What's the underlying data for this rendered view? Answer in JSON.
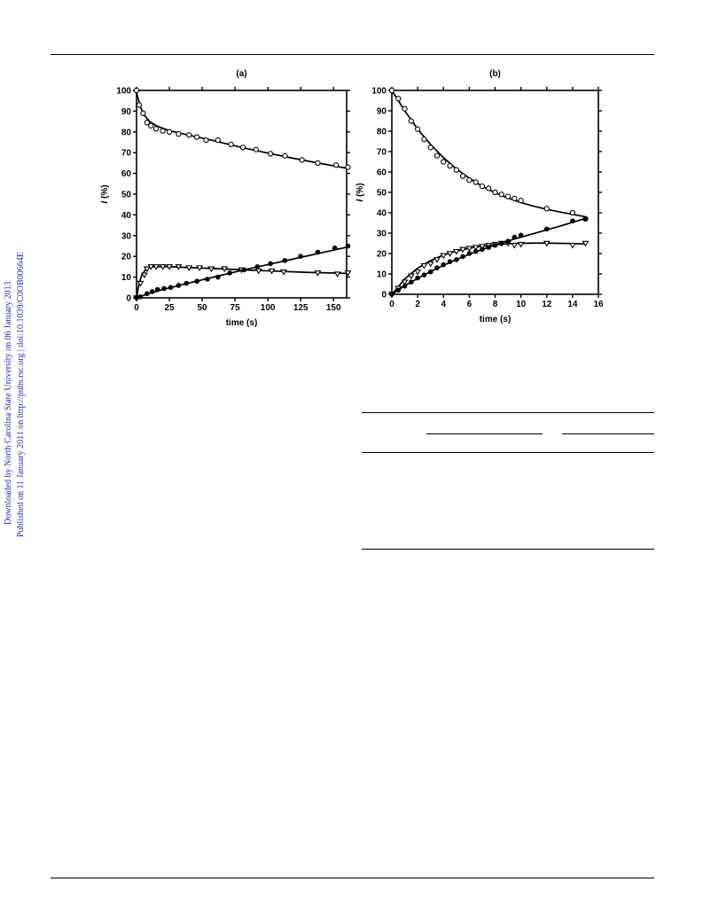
{
  "sidebar": {
    "line1": "Downloaded by North Carolina State University on 06 January 2013",
    "line2": "Published on 11 January 2011 on http://pubs.rsc.org | doi:10.1039/C0OB00664E"
  },
  "chart_data": [
    {
      "type": "scatter",
      "panel_label": "(a)",
      "xlabel": "time (s)",
      "ylabel_italic": "I",
      "ylabel_rest": " (%)",
      "xlim": [
        0,
        160
      ],
      "ylim": [
        0,
        100
      ],
      "xticks": [
        0,
        25,
        50,
        75,
        100,
        125,
        150
      ],
      "yticks": [
        0,
        10,
        20,
        30,
        40,
        50,
        60,
        70,
        80,
        90,
        100
      ],
      "series": [
        {
          "marker": "open-circle",
          "points": [
            [
              0,
              100
            ],
            [
              2,
              93
            ],
            [
              5,
              89
            ],
            [
              8,
              84.5
            ],
            [
              11,
              83
            ],
            [
              15,
              81.5
            ],
            [
              20,
              80.5
            ],
            [
              25,
              80
            ],
            [
              32,
              79
            ],
            [
              40,
              78.5
            ],
            [
              46,
              77.5
            ],
            [
              53,
              76
            ],
            [
              62,
              76
            ],
            [
              72,
              74
            ],
            [
              81,
              72.5
            ],
            [
              91,
              71.5
            ],
            [
              102,
              69.5
            ],
            [
              113,
              68.5
            ],
            [
              126,
              66.5
            ],
            [
              138,
              65
            ],
            [
              152,
              64
            ],
            [
              161,
              63
            ]
          ],
          "fit": [
            [
              0,
              99
            ],
            [
              3,
              92
            ],
            [
              6,
              88
            ],
            [
              10,
              85
            ],
            [
              15,
              83
            ],
            [
              25,
              80.6
            ],
            [
              40,
              78.4
            ],
            [
              60,
              75.6
            ],
            [
              80,
              72.5
            ],
            [
              100,
              69.8
            ],
            [
              120,
              67.2
            ],
            [
              140,
              64.8
            ],
            [
              160,
              62.5
            ]
          ]
        },
        {
          "marker": "open-triangle-down",
          "points": [
            [
              0,
              0
            ],
            [
              3,
              7
            ],
            [
              6,
              11
            ],
            [
              8,
              14
            ],
            [
              11,
              15
            ],
            [
              15,
              15
            ],
            [
              20,
              15
            ],
            [
              25,
              15
            ],
            [
              32,
              15
            ],
            [
              40,
              14.5
            ],
            [
              48,
              14.5
            ],
            [
              57,
              14
            ],
            [
              67,
              14
            ],
            [
              80,
              13.5
            ],
            [
              93,
              13
            ],
            [
              103,
              13
            ],
            [
              112,
              12.5
            ],
            [
              138,
              12
            ],
            [
              153,
              11.5
            ],
            [
              161,
              12
            ]
          ],
          "fit": [
            [
              0,
              0
            ],
            [
              2,
              7
            ],
            [
              4,
              11
            ],
            [
              7,
              13.7
            ],
            [
              10,
              14.8
            ],
            [
              15,
              15.1
            ],
            [
              25,
              15
            ],
            [
              40,
              14.6
            ],
            [
              60,
              14.1
            ],
            [
              80,
              13.5
            ],
            [
              100,
              13
            ],
            [
              130,
              12.3
            ],
            [
              160,
              11.8
            ]
          ]
        },
        {
          "marker": "filled-circle",
          "points": [
            [
              0,
              0
            ],
            [
              3,
              0.5
            ],
            [
              8,
              2
            ],
            [
              12,
              3
            ],
            [
              16,
              4
            ],
            [
              21,
              4.5
            ],
            [
              26,
              5
            ],
            [
              32,
              6
            ],
            [
              38,
              7
            ],
            [
              46,
              8
            ],
            [
              54,
              9
            ],
            [
              62,
              10
            ],
            [
              71,
              12
            ],
            [
              82,
              13.5
            ],
            [
              92,
              15
            ],
            [
              102,
              16.5
            ],
            [
              113,
              18
            ],
            [
              125,
              20
            ],
            [
              138,
              22
            ],
            [
              151,
              24
            ],
            [
              161,
              25
            ]
          ],
          "fit": [
            [
              0,
              0
            ],
            [
              10,
              2.2
            ],
            [
              20,
              4
            ],
            [
              40,
              7.2
            ],
            [
              60,
              10.2
            ],
            [
              80,
              13.2
            ],
            [
              100,
              16
            ],
            [
              120,
              18.8
            ],
            [
              140,
              21.6
            ],
            [
              160,
              24.4
            ]
          ]
        }
      ]
    },
    {
      "type": "scatter",
      "panel_label": "(b)",
      "xlabel": "time (s)",
      "ylabel_italic": "I",
      "ylabel_rest": " (%)",
      "xlim": [
        0,
        16
      ],
      "ylim": [
        0,
        100
      ],
      "xticks": [
        0,
        2,
        4,
        6,
        8,
        10,
        12,
        14,
        16
      ],
      "yticks": [
        0,
        10,
        20,
        30,
        40,
        50,
        60,
        70,
        80,
        90,
        100
      ],
      "series": [
        {
          "marker": "open-circle",
          "points": [
            [
              0,
              100
            ],
            [
              0.5,
              96
            ],
            [
              1,
              91
            ],
            [
              1.5,
              85
            ],
            [
              2,
              81
            ],
            [
              2.5,
              76
            ],
            [
              3,
              72
            ],
            [
              3.5,
              68
            ],
            [
              4,
              65
            ],
            [
              4.5,
              63
            ],
            [
              5,
              61
            ],
            [
              5.5,
              58
            ],
            [
              6,
              56
            ],
            [
              6.5,
              55
            ],
            [
              7,
              53
            ],
            [
              7.5,
              52
            ],
            [
              8,
              50
            ],
            [
              8.5,
              49
            ],
            [
              9,
              48
            ],
            [
              9.5,
              47
            ],
            [
              10,
              46
            ],
            [
              12,
              42
            ],
            [
              14,
              40
            ],
            [
              15,
              37
            ]
          ],
          "fit": [
            [
              0,
              100
            ],
            [
              1,
              90
            ],
            [
              2,
              81
            ],
            [
              3,
              73.5
            ],
            [
              4,
              67
            ],
            [
              5,
              61.5
            ],
            [
              6,
              57
            ],
            [
              7,
              53
            ],
            [
              8,
              49.8
            ],
            [
              9,
              47.2
            ],
            [
              10,
              45
            ],
            [
              11,
              43.2
            ],
            [
              12,
              41.7
            ],
            [
              13,
              40.4
            ],
            [
              14,
              39.2
            ],
            [
              15,
              38
            ]
          ]
        },
        {
          "marker": "open-triangle-down",
          "points": [
            [
              0,
              0
            ],
            [
              0.5,
              3
            ],
            [
              1,
              6
            ],
            [
              1.5,
              9
            ],
            [
              2,
              11
            ],
            [
              2.5,
              14
            ],
            [
              3,
              15
            ],
            [
              3.5,
              17
            ],
            [
              4,
              19
            ],
            [
              4.5,
              20
            ],
            [
              5,
              21
            ],
            [
              5.5,
              22
            ],
            [
              6,
              22.5
            ],
            [
              6.5,
              23
            ],
            [
              7,
              23.5
            ],
            [
              7.5,
              24
            ],
            [
              8,
              24.5
            ],
            [
              8.5,
              25
            ],
            [
              9,
              25
            ],
            [
              9.5,
              24
            ],
            [
              10,
              24.5
            ],
            [
              12,
              25
            ],
            [
              14,
              24
            ],
            [
              15,
              25
            ]
          ],
          "fit": [
            [
              0,
              0
            ],
            [
              1,
              7.5
            ],
            [
              2,
              12.8
            ],
            [
              3,
              16.5
            ],
            [
              4,
              19.3
            ],
            [
              5,
              21.2
            ],
            [
              6,
              22.6
            ],
            [
              7,
              23.6
            ],
            [
              8,
              24.3
            ],
            [
              9,
              24.8
            ],
            [
              10,
              25
            ],
            [
              11,
              25.1
            ],
            [
              12,
              25.1
            ],
            [
              13,
              25
            ],
            [
              14,
              24.9
            ],
            [
              15,
              24.7
            ]
          ]
        },
        {
          "marker": "filled-circle",
          "points": [
            [
              0,
              0
            ],
            [
              0.5,
              2
            ],
            [
              1,
              4
            ],
            [
              1.5,
              6
            ],
            [
              2,
              8
            ],
            [
              2.5,
              9.5
            ],
            [
              3,
              11
            ],
            [
              3.5,
              13
            ],
            [
              4,
              14.5
            ],
            [
              4.5,
              16
            ],
            [
              5,
              17
            ],
            [
              5.5,
              18.5
            ],
            [
              6,
              20
            ],
            [
              6.5,
              21
            ],
            [
              7,
              22
            ],
            [
              7.5,
              23
            ],
            [
              8,
              24
            ],
            [
              8.5,
              25
            ],
            [
              9,
              26
            ],
            [
              9.5,
              28
            ],
            [
              10,
              29
            ],
            [
              12,
              32
            ],
            [
              14,
              36
            ],
            [
              15,
              37
            ]
          ],
          "fit": [
            [
              0,
              0
            ],
            [
              1,
              4.2
            ],
            [
              2,
              7.8
            ],
            [
              3,
              11.2
            ],
            [
              4,
              14.2
            ],
            [
              5,
              17
            ],
            [
              6,
              19.6
            ],
            [
              7,
              22
            ],
            [
              8,
              24.2
            ],
            [
              9,
              26.2
            ],
            [
              10,
              28
            ],
            [
              11,
              29.8
            ],
            [
              12,
              31.6
            ],
            [
              13,
              33.4
            ],
            [
              14,
              35.3
            ],
            [
              15,
              37.2
            ]
          ]
        }
      ]
    }
  ]
}
